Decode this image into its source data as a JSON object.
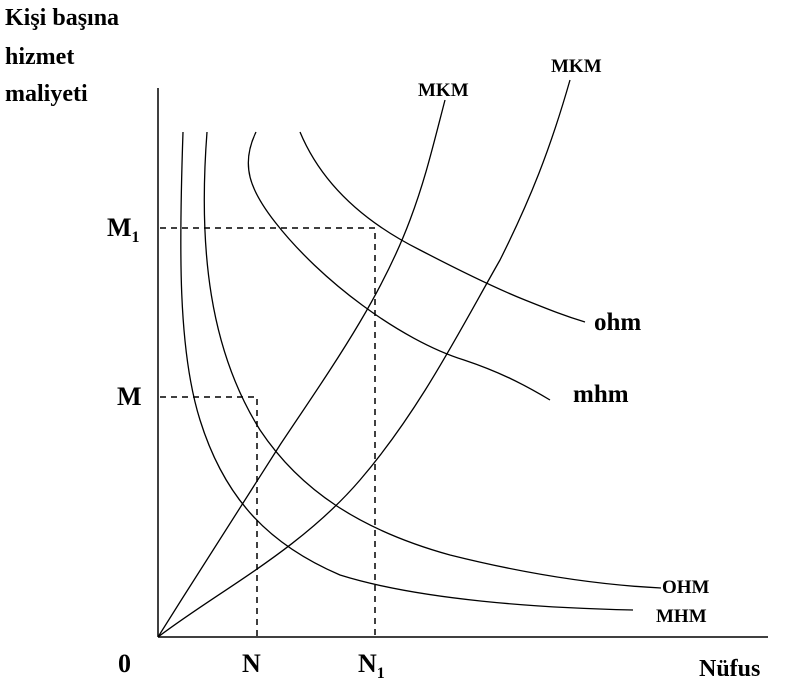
{
  "axes": {
    "y_label_lines": [
      "Kişi başına",
      "hizmet",
      "maliyeti"
    ],
    "x_label": "Nüfus",
    "origin": "0"
  },
  "ticks": {
    "x": [
      {
        "base": "N",
        "sub": ""
      },
      {
        "base": "N",
        "sub": "1"
      }
    ],
    "y": [
      {
        "base": "M",
        "sub": ""
      },
      {
        "base": "M",
        "sub": "1"
      }
    ]
  },
  "curves": {
    "mkm_inner": "MKM",
    "mkm_outer": "MKM",
    "ohm_upper": "OHM",
    "mhm_lower": "MHM",
    "mhm_upper": "mhm",
    "ohm_top": "ohm"
  },
  "colors": {
    "line": "#000000",
    "background": "#ffffff"
  }
}
